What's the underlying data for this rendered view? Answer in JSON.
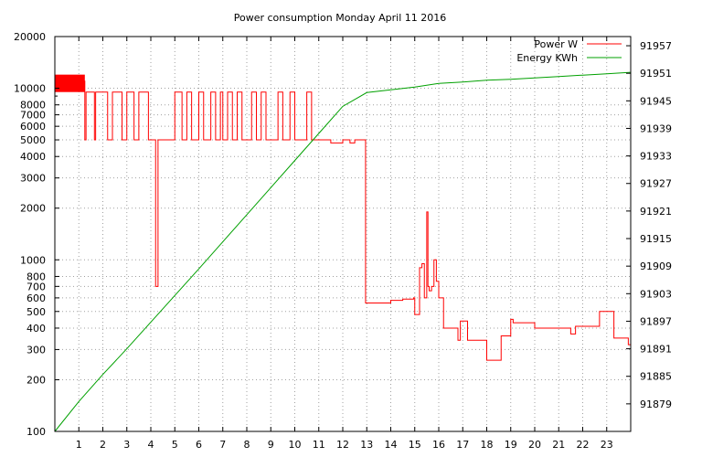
{
  "chart_data": {
    "type": "line",
    "title": "Power consumption Monday April 11 2016",
    "xlabel": "",
    "ylabel": "",
    "y2label": "",
    "grid": true,
    "legend_position": "top-right",
    "xlim": [
      0,
      24
    ],
    "ylim": [
      100,
      20000
    ],
    "y_scale": "log",
    "y2lim": [
      91873,
      91959
    ],
    "x_ticks": [
      1,
      2,
      3,
      4,
      5,
      6,
      7,
      8,
      9,
      10,
      11,
      12,
      13,
      14,
      15,
      16,
      17,
      18,
      19,
      20,
      21,
      22,
      23
    ],
    "y_ticks": [
      {
        "value": 100,
        "label": "100"
      },
      {
        "value": 200,
        "label": "200"
      },
      {
        "value": 300,
        "label": "300"
      },
      {
        "value": 400,
        "label": "400"
      },
      {
        "value": 500,
        "label": "500"
      },
      {
        "value": 600,
        "label": "600"
      },
      {
        "value": 700,
        "label": "700"
      },
      {
        "value": 800,
        "label": "800"
      },
      {
        "value": 1000,
        "label": "1000"
      },
      {
        "value": 2000,
        "label": "2000"
      },
      {
        "value": 3000,
        "label": "3000"
      },
      {
        "value": 4000,
        "label": "4000"
      },
      {
        "value": 5000,
        "label": "5000"
      },
      {
        "value": 6000,
        "label": "6000"
      },
      {
        "value": 7000,
        "label": "7000"
      },
      {
        "value": 8000,
        "label": "8000"
      },
      {
        "value": 10000,
        "label": "10000"
      },
      {
        "value": 20000,
        "label": "20000"
      }
    ],
    "y2_ticks": [
      {
        "value": 91879,
        "label": "91879"
      },
      {
        "value": 91885,
        "label": "91885"
      },
      {
        "value": 91891,
        "label": "91891"
      },
      {
        "value": 91897,
        "label": "91897"
      },
      {
        "value": 91903,
        "label": "91903"
      },
      {
        "value": 91909,
        "label": "91909"
      },
      {
        "value": 91915,
        "label": "91915"
      },
      {
        "value": 91921,
        "label": "91921"
      },
      {
        "value": 91927,
        "label": "91927"
      },
      {
        "value": 91933,
        "label": "91933"
      },
      {
        "value": 91939,
        "label": "91939"
      },
      {
        "value": 91945,
        "label": "91945"
      },
      {
        "value": 91951,
        "label": "91951"
      },
      {
        "value": 91957,
        "label": "91957"
      }
    ],
    "series": [
      {
        "name": "Power W",
        "axis": "left",
        "color": "#ff0000",
        "style": "steps",
        "x": [
          0,
          1.25,
          1.3,
          1.65,
          1.7,
          2.2,
          2.4,
          2.8,
          3.0,
          3.3,
          3.5,
          3.9,
          4.0,
          4.2,
          4.3,
          4.8,
          5.0,
          5.3,
          5.5,
          5.7,
          5.8,
          6.0,
          6.2,
          6.5,
          6.7,
          6.9,
          7.0,
          7.2,
          7.4,
          7.6,
          7.8,
          8.0,
          8.2,
          8.4,
          8.6,
          8.8,
          9.0,
          9.3,
          9.5,
          9.8,
          10.0,
          10.3,
          10.5,
          10.7,
          11.0,
          11.3,
          11.5,
          11.8,
          12.0,
          12.3,
          12.5,
          12.8,
          12.95,
          13.0,
          13.5,
          14.0,
          14.5,
          14.95,
          15.0,
          15.2,
          15.3,
          15.4,
          15.5,
          15.55,
          15.6,
          15.7,
          15.8,
          15.9,
          16.0,
          16.1,
          16.2,
          16.4,
          16.7,
          16.8,
          16.9,
          17.0,
          17.2,
          17.6,
          18.0,
          18.3,
          18.6,
          18.8,
          19.0,
          19.1,
          19.5,
          20.0,
          20.5,
          21.0,
          21.5,
          21.7,
          22.0,
          22.5,
          22.7,
          23.0,
          23.3,
          23.5,
          23.9,
          24.0
        ],
        "y": [
          11000,
          5000,
          9500,
          5000,
          9500,
          5000,
          9500,
          5000,
          9500,
          5000,
          9500,
          5000,
          5000,
          700,
          5000,
          5000,
          9500,
          5000,
          9500,
          5000,
          5000,
          9500,
          5000,
          9500,
          5000,
          9500,
          5000,
          9500,
          5000,
          9500,
          5000,
          5000,
          9500,
          5000,
          9500,
          5000,
          5000,
          9500,
          5000,
          9500,
          5000,
          5000,
          9500,
          5000,
          5000,
          5000,
          4800,
          4800,
          5000,
          4800,
          5000,
          5000,
          560,
          560,
          560,
          580,
          590,
          600,
          480,
          900,
          950,
          600,
          1900,
          700,
          660,
          700,
          1000,
          750,
          600,
          600,
          400,
          400,
          400,
          340,
          440,
          440,
          340,
          340,
          260,
          260,
          360,
          360,
          450,
          430,
          430,
          400,
          400,
          400,
          370,
          410,
          410,
          410,
          500,
          500,
          350,
          350,
          320,
          460
        ]
      },
      {
        "name": "Energy KWh",
        "axis": "right",
        "color": "#00a000",
        "style": "line",
        "x": [
          0,
          1,
          2,
          3,
          4,
          5,
          6,
          7,
          8,
          9,
          10,
          11,
          12,
          13,
          14,
          15,
          16,
          17,
          18,
          19,
          20,
          21,
          22,
          23,
          24
        ],
        "y": [
          91873.0,
          91879.5,
          91885.4,
          91891.0,
          91896.8,
          91902.6,
          91908.4,
          91914.3,
          91920.2,
          91926.1,
          91932.0,
          91937.9,
          91943.8,
          91946.8,
          91947.4,
          91948.0,
          91948.8,
          91949.1,
          91949.5,
          91949.7,
          91950.0,
          91950.3,
          91950.6,
          91950.9,
          91951.2
        ]
      }
    ]
  }
}
